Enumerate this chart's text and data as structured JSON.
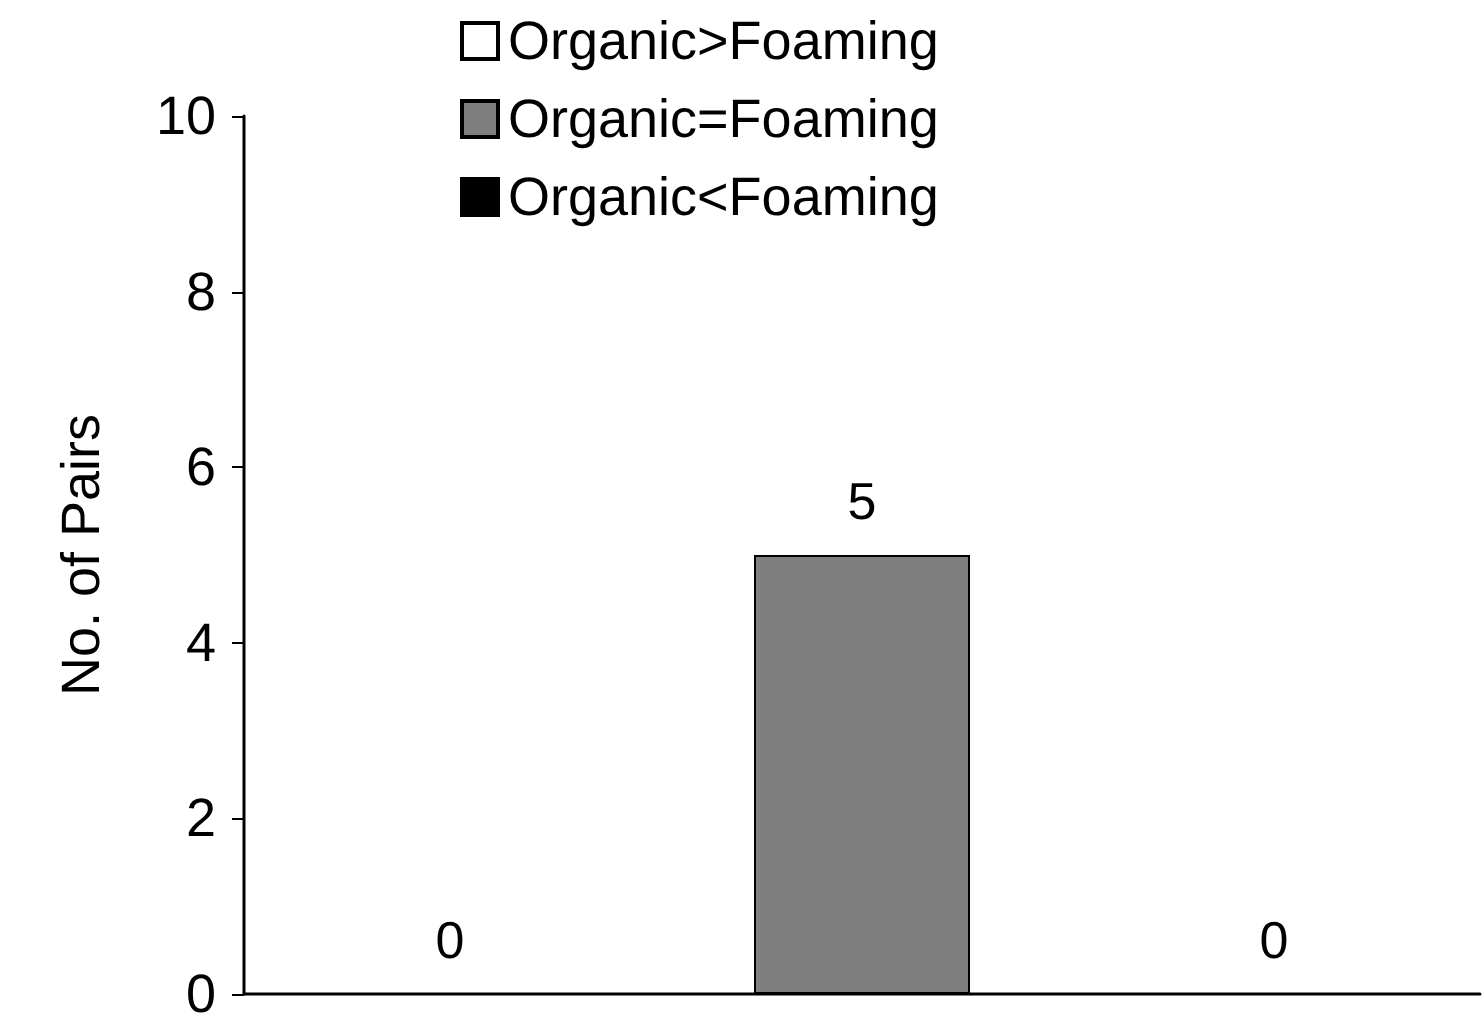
{
  "chart_data": {
    "type": "bar",
    "ylabel": "No. of Pairs",
    "categories": [
      null,
      null,
      null
    ],
    "series": [
      {
        "name": "Organic>Foaming",
        "color": "#ffffff",
        "values": [
          0,
          null,
          null
        ]
      },
      {
        "name": "Organic=Foaming",
        "color": "#7f7f7f",
        "values": [
          null,
          5,
          null
        ]
      },
      {
        "name": "Organic<Foaming",
        "color": "#000000",
        "values": [
          null,
          null,
          0
        ]
      }
    ],
    "ylim": [
      0,
      10
    ],
    "yticks": [
      0,
      2,
      4,
      6,
      8,
      10
    ],
    "grid": false,
    "legend": "top",
    "data_labels": true
  }
}
